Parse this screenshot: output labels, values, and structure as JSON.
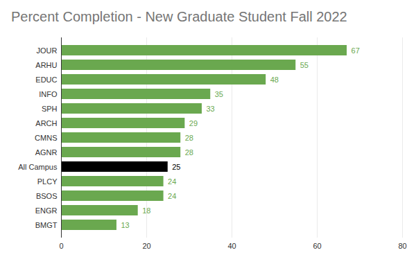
{
  "chart_data": {
    "type": "bar",
    "title": "Percent Completion - New Graduate Student Fall 2022",
    "orientation": "horizontal",
    "categories": [
      "JOUR",
      "ARHU",
      "EDUC",
      "INFO",
      "SPH",
      "ARCH",
      "CMNS",
      "AGNR",
      "All Campus",
      "PLCY",
      "BSOS",
      "ENGR",
      "BMGT"
    ],
    "values": [
      67,
      55,
      48,
      35,
      33,
      29,
      28,
      28,
      25,
      24,
      24,
      18,
      13
    ],
    "colors": [
      "#6aa84f",
      "#6aa84f",
      "#6aa84f",
      "#6aa84f",
      "#6aa84f",
      "#6aa84f",
      "#6aa84f",
      "#6aa84f",
      "#000000",
      "#6aa84f",
      "#6aa84f",
      "#6aa84f",
      "#6aa84f"
    ],
    "xlim": [
      0,
      80
    ],
    "xticks": [
      0,
      20,
      40,
      60,
      80
    ],
    "grid": true,
    "data_labels": true
  }
}
